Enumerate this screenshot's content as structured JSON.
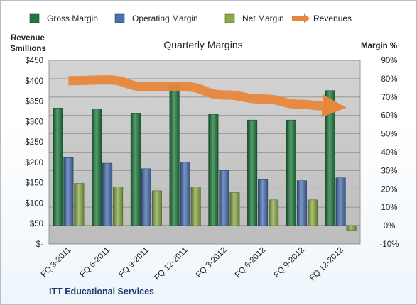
{
  "chart_data": {
    "type": "bar",
    "title": "Quarterly Margins",
    "categories": [
      "FQ 3-2011",
      "FQ 6-2011",
      "FQ 9-2011",
      "FQ 12-2011",
      "FQ 3-2012",
      "FQ 6-2012",
      "FQ 9-2012",
      "FQ 12-2012"
    ],
    "series": [
      {
        "name": "Gross Margin",
        "axis": "right",
        "color": "#1e7a3c",
        "values": [
          64,
          63.5,
          61,
          77,
          60.5,
          57.5,
          57.5,
          73.5
        ]
      },
      {
        "name": "Operating Margin",
        "axis": "right",
        "color": "#4a70b0",
        "values": [
          37,
          34,
          31,
          34.5,
          30,
          25,
          24.5,
          26
        ]
      },
      {
        "name": "Net Margin",
        "axis": "right",
        "color": "#8aab48",
        "values": [
          23,
          21,
          19,
          21,
          18,
          14,
          14,
          -2.5
        ]
      },
      {
        "name": "Revenues",
        "axis": "left",
        "type": "line",
        "color": "#e8863b",
        "values": [
          400,
          402,
          385,
          385,
          365,
          355,
          342,
          335
        ]
      }
    ],
    "left_axis": {
      "title_line1": "Revenue",
      "title_line2": "$millions",
      "min": 0,
      "max": 450,
      "step": 50,
      "tick_labels": [
        "$-",
        "$50",
        "$100",
        "$150",
        "$200",
        "$250",
        "$300",
        "$350",
        "$400",
        "$450"
      ]
    },
    "right_axis": {
      "title": "Margin %",
      "min": -10,
      "max": 90,
      "step": 10,
      "tick_labels": [
        "-10%",
        "0%",
        "10%",
        "20%",
        "30%",
        "40%",
        "50%",
        "60%",
        "70%",
        "80%",
        "90%"
      ]
    },
    "grid": true,
    "legend": "top",
    "plot_background": "#c8c8c8"
  },
  "footer": {
    "company": "ITT Educational Services"
  }
}
